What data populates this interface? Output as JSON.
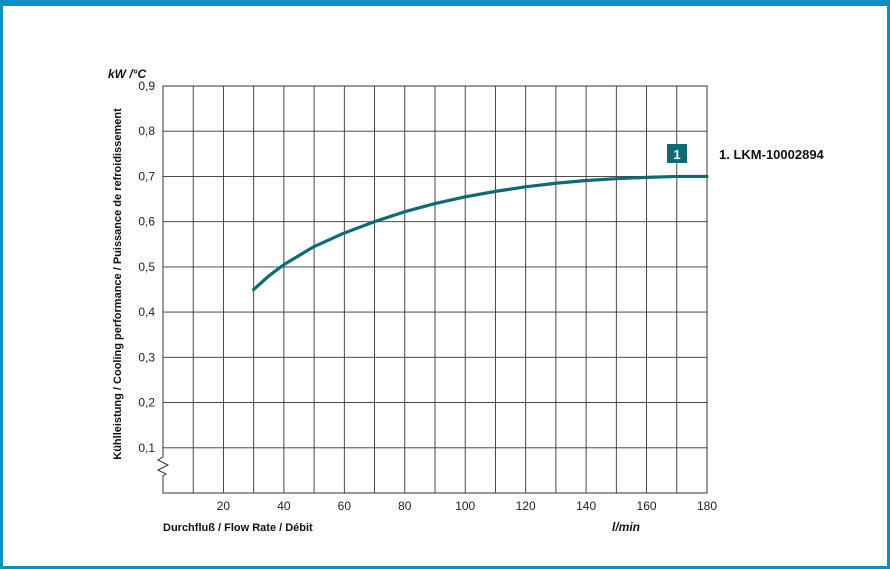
{
  "chart_data": {
    "type": "line",
    "y_unit": "kW /°C",
    "ylabel": "Kühlleistung / Cooling performance / Puissance de refroidissement",
    "xlabel": "Durchfluß / Flow Rate / Débit",
    "x_unit": "l/min",
    "xlim": [
      0,
      180
    ],
    "ylim": [
      0,
      0.9
    ],
    "x_ticks": [
      20,
      40,
      60,
      80,
      100,
      120,
      140,
      160,
      180
    ],
    "x_tick_labels": [
      "20",
      "40",
      "60",
      "80",
      "100",
      "120",
      "140",
      "160",
      "180"
    ],
    "y_ticks": [
      0.1,
      0.2,
      0.3,
      0.4,
      0.5,
      0.6,
      0.7,
      0.8,
      0.9
    ],
    "y_tick_labels": [
      "0,1",
      "0,2",
      "0,3",
      "0,4",
      "0,5",
      "0,6",
      "0,7",
      "0,8",
      "0,9"
    ],
    "y_axis_break": true,
    "grid": true,
    "series": [
      {
        "name": "1. LKM-10002894",
        "badge": "1",
        "color": "#0d6b73",
        "x": [
          30,
          35,
          40,
          50,
          60,
          70,
          80,
          90,
          100,
          110,
          120,
          130,
          140,
          150,
          160,
          170,
          180
        ],
        "y": [
          0.45,
          0.48,
          0.505,
          0.545,
          0.575,
          0.6,
          0.622,
          0.64,
          0.655,
          0.667,
          0.677,
          0.685,
          0.691,
          0.695,
          0.698,
          0.7,
          0.7
        ]
      }
    ],
    "legend": {
      "badge": "1",
      "label": "1. LKM-10002894"
    }
  },
  "colors": {
    "frame": "#0a8fc2",
    "grid": "#333333",
    "curve": "#0d6b73",
    "badge": "#0d6b73"
  }
}
